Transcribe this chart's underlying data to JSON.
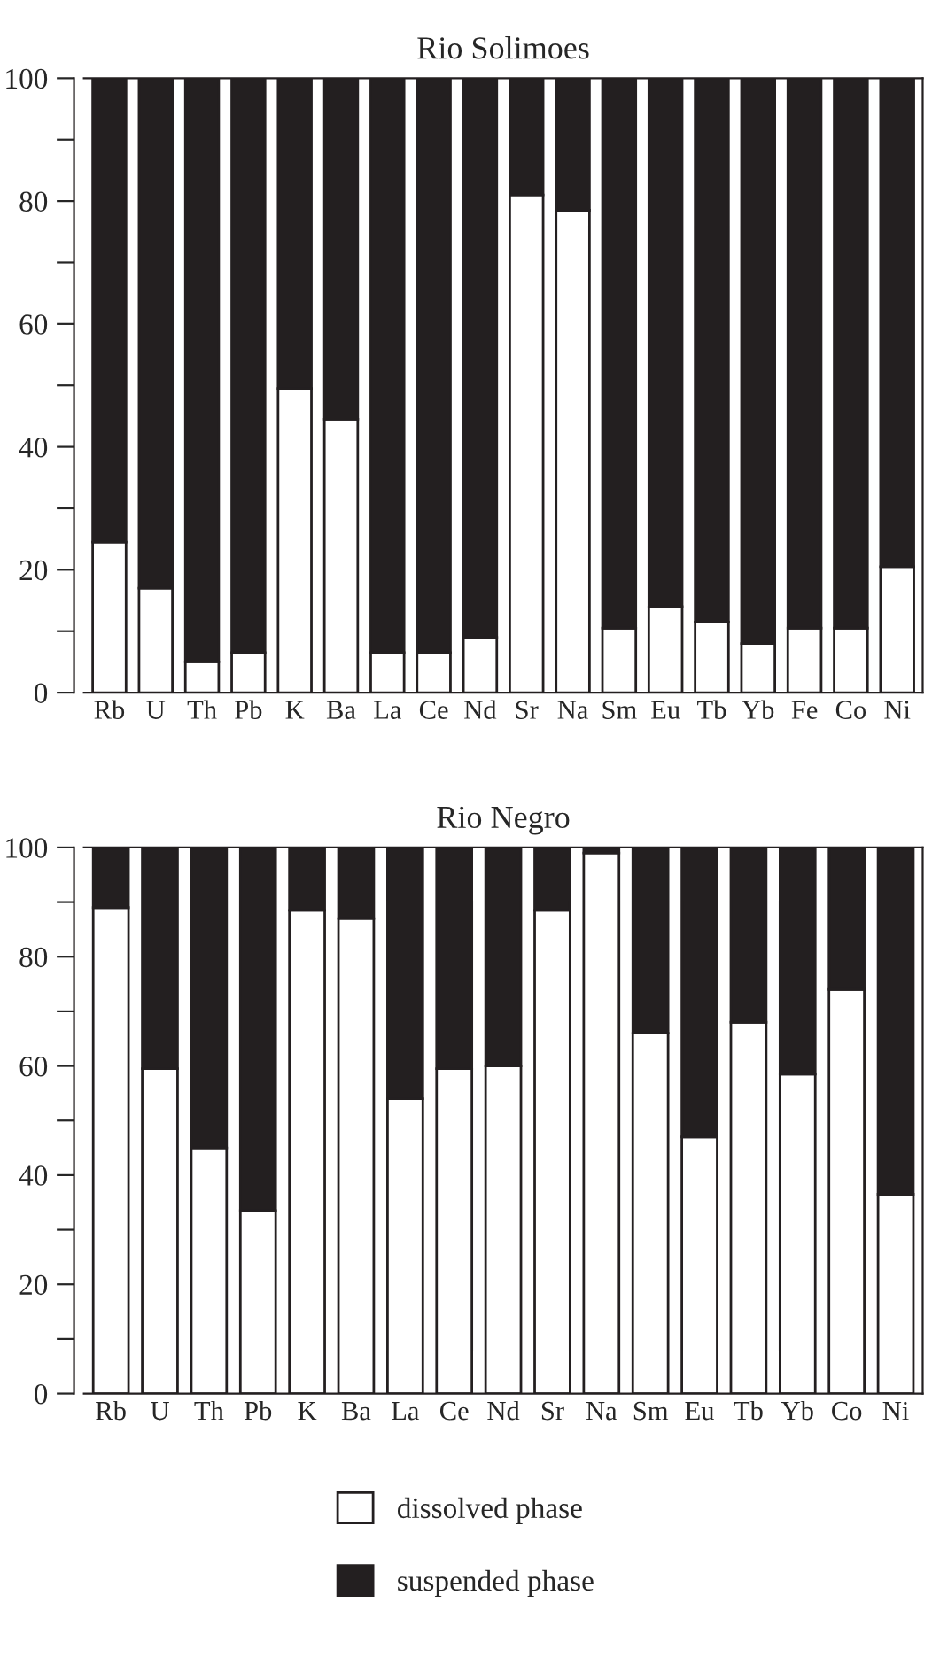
{
  "chart_data": [
    {
      "type": "bar",
      "title": "Rio Solimoes",
      "stacked": true,
      "categories": [
        "Rb",
        "U",
        "Th",
        "Pb",
        "K",
        "Ba",
        "La",
        "Ce",
        "Nd",
        "Sr",
        "Na",
        "Sm",
        "Eu",
        "Tb",
        "Yb",
        "Fe",
        "Co",
        "Ni"
      ],
      "series": [
        {
          "color": "#ffffff",
          "values": [
            24.5,
            17,
            5,
            6.5,
            49.5,
            44.5,
            6.5,
            6.5,
            9,
            81,
            78.5,
            10.5,
            14,
            11.5,
            8,
            10.5,
            10.5,
            20.5
          ]
        },
        {
          "color": "#231f20",
          "values": [
            75.5,
            83,
            95,
            93.5,
            50.5,
            55.5,
            93.5,
            93.5,
            91,
            19,
            21.5,
            89.5,
            86,
            88.5,
            92,
            89.5,
            89.5,
            79.5
          ]
        }
      ],
      "ylim": [
        0,
        100
      ],
      "yticks": [
        0,
        {
          "value": 10,
          "label": null
        },
        20,
        {
          "value": 30,
          "label": null
        },
        40,
        {
          "value": 50,
          "label": null
        },
        60,
        {
          "value": 70,
          "label": null
        },
        80,
        {
          "value": 90,
          "label": null
        },
        100
      ]
    },
    {
      "type": "bar",
      "title": "Rio Negro",
      "stacked": true,
      "categories": [
        "Rb",
        "U",
        "Th",
        "Pb",
        "K",
        "Ba",
        "La",
        "Ce",
        "Nd",
        "Sr",
        "Na",
        "Sm",
        "Eu",
        "Tb",
        "Yb",
        "Co",
        "Ni"
      ],
      "series": [
        {
          "name": "dissolved phase",
          "color": "#ffffff",
          "values": [
            89,
            59.5,
            45,
            33.5,
            88.5,
            87,
            54,
            59.5,
            60,
            88.5,
            99,
            66,
            47,
            68,
            58.5,
            74,
            36.5
          ]
        },
        {
          "name": "suspended phase",
          "color": "#231f20",
          "values": [
            11,
            40.5,
            55,
            66.5,
            11.5,
            13,
            46,
            40.5,
            40,
            11.5,
            1,
            34,
            53,
            32,
            41.5,
            26,
            63.5
          ]
        }
      ],
      "ylim": [
        0,
        100
      ],
      "yticks": [
        0,
        {
          "value": 10,
          "label": null
        },
        20,
        {
          "value": 30,
          "label": null
        },
        40,
        {
          "value": 50,
          "label": null
        },
        60,
        {
          "value": 70,
          "label": null
        },
        80,
        {
          "value": 90,
          "label": null
        },
        100
      ],
      "legend": "bottom"
    }
  ]
}
